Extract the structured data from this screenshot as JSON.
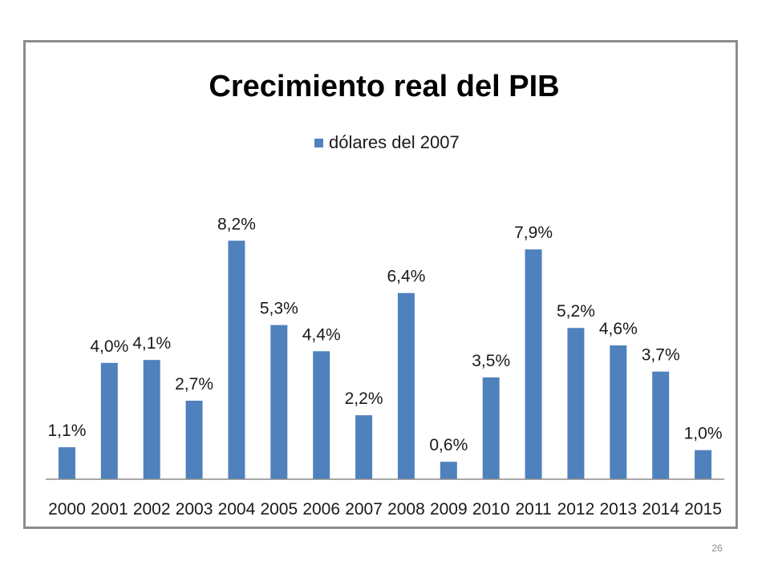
{
  "chart_data": {
    "type": "bar",
    "title": "Crecimiento real del PIB",
    "legend": {
      "position": "top",
      "entries": [
        "dólares del 2007"
      ]
    },
    "categories": [
      "2000",
      "2001",
      "2002",
      "2003",
      "2004",
      "2005",
      "2006",
      "2007",
      "2008",
      "2009",
      "2010",
      "2011",
      "2012",
      "2013",
      "2014",
      "2015"
    ],
    "series": [
      {
        "name": "dólares del 2007",
        "color": "#4f81bd",
        "values": [
          1.1,
          4.0,
          4.1,
          2.7,
          8.2,
          5.3,
          4.4,
          2.2,
          6.4,
          0.6,
          3.5,
          7.9,
          5.2,
          4.6,
          3.7,
          1.0
        ],
        "data_labels": [
          "1,1%",
          "4,0%",
          "4,1%",
          "2,7%",
          "8,2%",
          "5,3%",
          "4,4%",
          "2,2%",
          "6,4%",
          "0,6%",
          "3,5%",
          "7,9%",
          "5,2%",
          "4,6%",
          "3,7%",
          "1,0%"
        ]
      }
    ],
    "xlabel": "",
    "ylabel": "",
    "ylim": [
      0,
      9
    ],
    "grid": false
  },
  "slide": {
    "number": "26"
  }
}
